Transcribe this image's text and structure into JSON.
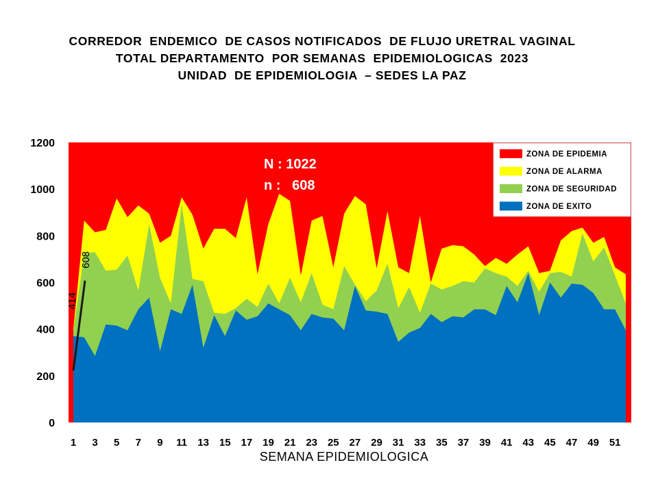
{
  "title_lines": [
    "CORREDOR  ENDEMICO  DE CASOS NOTIFICADOS  DE FLUJO URETRAL VAGINAL",
    "TOTAL DEPARTAMENTO  POR SEMANAS  EPIDEMIOLOGICAS  2023",
    "UNIDAD  DE EPIDEMIOLOGIA  – SEDES LA PAZ"
  ],
  "chart_data": {
    "type": "area",
    "title": "CORREDOR  ENDEMICO  DE CASOS NOTIFICADOS  DE FLUJO URETRAL VAGINAL / TOTAL DEPARTAMENTO  POR SEMANAS  EPIDEMIOLOGICAS  2023 / UNIDAD  DE EPIDEMIOLOGIA  – SEDES LA PAZ",
    "xlabel": "SEMANA EPIDEMIOLOGICA",
    "ylabel": "",
    "ylim": [
      0,
      1200
    ],
    "yticks": [
      0,
      200,
      400,
      600,
      800,
      1000,
      1200
    ],
    "x": [
      1,
      2,
      3,
      4,
      5,
      6,
      7,
      8,
      9,
      10,
      11,
      12,
      13,
      14,
      15,
      16,
      17,
      18,
      19,
      20,
      21,
      22,
      23,
      24,
      25,
      26,
      27,
      28,
      29,
      30,
      31,
      32,
      33,
      34,
      35,
      36,
      37,
      38,
      39,
      40,
      41,
      42,
      43,
      44,
      45,
      46,
      47,
      48,
      49,
      50,
      51,
      52
    ],
    "xtick_labels": [
      "1",
      "3",
      "5",
      "7",
      "9",
      "11",
      "13",
      "15",
      "17",
      "19",
      "21",
      "23",
      "25",
      "27",
      "29",
      "31",
      "33",
      "35",
      "37",
      "39",
      "41",
      "43",
      "45",
      "47",
      "49",
      "51"
    ],
    "grid": false,
    "legend_position": "top-right",
    "series": [
      {
        "name": "ZONA DE EPIDEMIA",
        "color": "#ff0000",
        "values": [
          1200,
          1200,
          1200,
          1200,
          1200,
          1200,
          1200,
          1200,
          1200,
          1200,
          1200,
          1200,
          1200,
          1200,
          1200,
          1200,
          1200,
          1200,
          1200,
          1200,
          1200,
          1200,
          1200,
          1200,
          1200,
          1200,
          1200,
          1200,
          1200,
          1200,
          1200,
          1200,
          1200,
          1200,
          1200,
          1200,
          1200,
          1200,
          1200,
          1200,
          1200,
          1200,
          1200,
          1200,
          1200,
          1200,
          1200,
          1200,
          1200,
          1200,
          1200,
          1200
        ]
      },
      {
        "name": "ZONA DE ALARMA",
        "color": "#ffff00",
        "values": [
          400,
          865,
          815,
          825,
          960,
          880,
          930,
          895,
          770,
          800,
          965,
          890,
          745,
          830,
          830,
          790,
          965,
          635,
          850,
          980,
          950,
          630,
          865,
          885,
          665,
          895,
          970,
          935,
          660,
          905,
          665,
          640,
          885,
          600,
          745,
          760,
          755,
          720,
          670,
          705,
          680,
          720,
          755,
          640,
          650,
          780,
          820,
          835,
          770,
          795,
          665,
          635
        ]
      },
      {
        "name": "ZONA DE SEGURIDAD",
        "color": "#92d050",
        "values": [
          390,
          725,
          730,
          650,
          655,
          715,
          565,
          850,
          620,
          510,
          935,
          615,
          605,
          470,
          465,
          490,
          530,
          495,
          595,
          510,
          620,
          515,
          640,
          505,
          485,
          670,
          590,
          520,
          565,
          680,
          490,
          580,
          470,
          595,
          570,
          585,
          605,
          600,
          660,
          640,
          625,
          585,
          650,
          560,
          640,
          645,
          625,
          810,
          690,
          750,
          630,
          510
        ]
      },
      {
        "name": "ZONA DE EXITO",
        "color": "#0070c0",
        "values": [
          370,
          365,
          285,
          420,
          415,
          395,
          485,
          535,
          305,
          485,
          465,
          590,
          320,
          460,
          370,
          480,
          440,
          455,
          510,
          485,
          460,
          395,
          465,
          450,
          445,
          395,
          585,
          480,
          475,
          465,
          345,
          385,
          405,
          465,
          430,
          455,
          450,
          485,
          485,
          460,
          585,
          515,
          640,
          460,
          600,
          535,
          595,
          590,
          555,
          485,
          485,
          395
        ]
      }
    ],
    "annotation": {
      "N_label": "N : 1022",
      "n_label": "n :   608"
    },
    "slope_marker": {
      "from_value": 414,
      "to_value": 608,
      "from_label": "414",
      "to_label": "608"
    }
  }
}
